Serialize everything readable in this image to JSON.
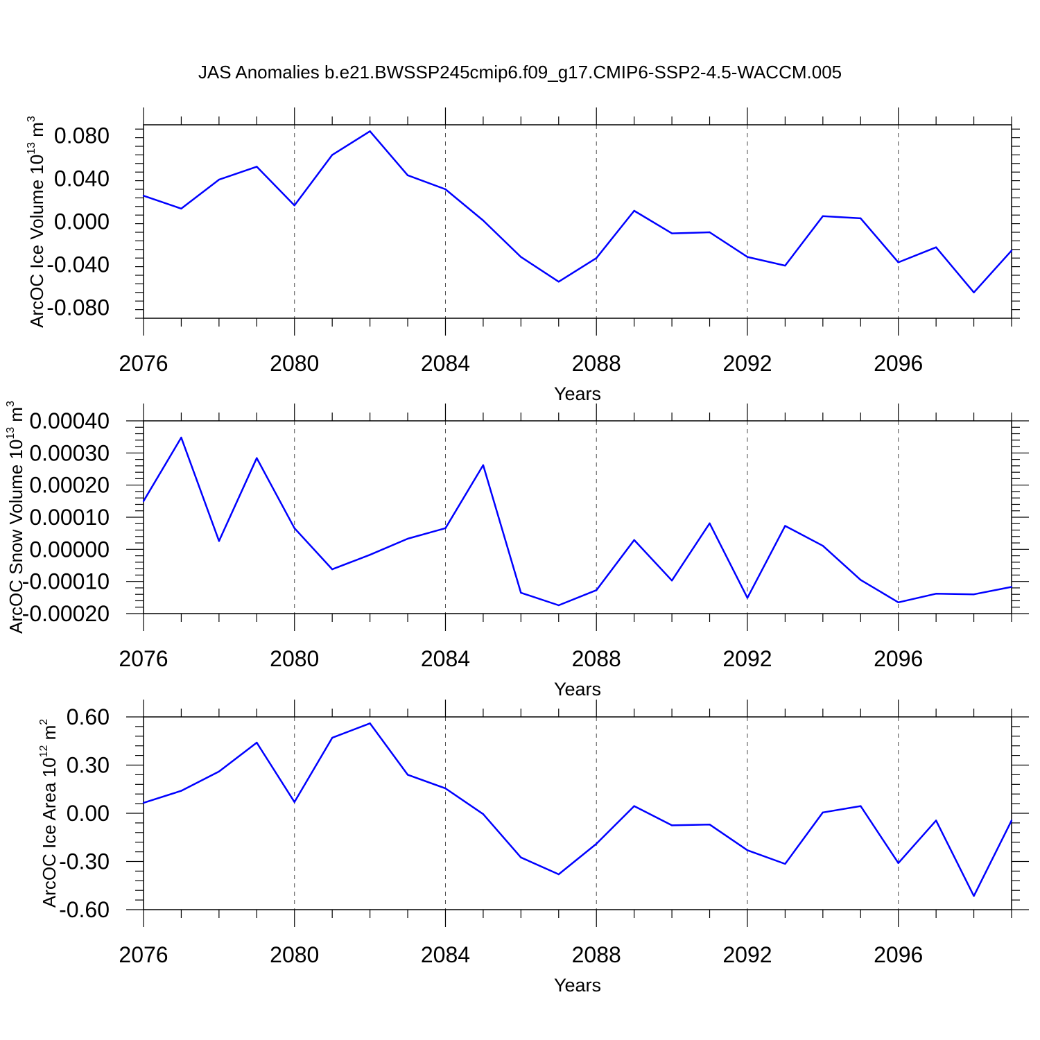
{
  "title": "JAS Anomalies b.e21.BWSSP245cmip6.f09_g17.CMIP6-SSP2-4.5-WACCM.005",
  "colors": {
    "line": "#0000ff",
    "axis": "#000000",
    "grid": "#000000",
    "background": "#ffffff"
  },
  "chart_data": [
    {
      "type": "line",
      "ylabel_text": "ArcOC Ice Volume 10",
      "ylabel_exp": "13",
      "ylabel_unit": " m",
      "ylabel_unit_exp": "3",
      "xlabel": "Years",
      "xlim": [
        2076,
        2099
      ],
      "ylim": [
        -0.09,
        0.09
      ],
      "xticks": [
        2076,
        2080,
        2084,
        2088,
        2092,
        2096
      ],
      "xtick_labels": [
        "2076",
        "2080",
        "2084",
        "2088",
        "2092",
        "2096"
      ],
      "yticks": [
        -0.08,
        -0.04,
        0.0,
        0.04,
        0.08
      ],
      "ytick_labels": [
        "-0.080",
        "-0.040",
        "0.000",
        "0.040",
        "0.080"
      ],
      "grid": "dashed vertical at major x ticks",
      "x": [
        2076,
        2077,
        2078,
        2079,
        2080,
        2081,
        2082,
        2083,
        2084,
        2085,
        2086,
        2087,
        2088,
        2089,
        2090,
        2091,
        2092,
        2093,
        2094,
        2095,
        2096,
        2097,
        2098,
        2099
      ],
      "y": [
        0.024,
        0.012,
        0.039,
        0.051,
        0.015,
        0.062,
        0.084,
        0.043,
        0.03,
        0.001,
        -0.033,
        -0.056,
        -0.034,
        0.01,
        -0.011,
        -0.01,
        -0.033,
        -0.041,
        0.005,
        0.003,
        -0.038,
        -0.024,
        -0.066,
        -0.027
      ]
    },
    {
      "type": "line",
      "ylabel_text": "ArcOC Snow Volume 10",
      "ylabel_exp": "13",
      "ylabel_unit": " m",
      "ylabel_unit_exp": "3",
      "xlabel": "Years",
      "xlim": [
        2076,
        2099
      ],
      "ylim": [
        -0.0002,
        0.0004
      ],
      "xticks": [
        2076,
        2080,
        2084,
        2088,
        2092,
        2096
      ],
      "xtick_labels": [
        "2076",
        "2080",
        "2084",
        "2088",
        "2092",
        "2096"
      ],
      "yticks": [
        -0.0002,
        -0.0001,
        0.0,
        0.0001,
        0.0002,
        0.0003,
        0.0004
      ],
      "ytick_labels": [
        "-0.00020",
        "-0.00010",
        "0.00000",
        "0.00010",
        "0.00020",
        "0.00030",
        "0.00040"
      ],
      "grid": "dashed vertical at major x ticks",
      "x": [
        2076,
        2077,
        2078,
        2079,
        2080,
        2081,
        2082,
        2083,
        2084,
        2085,
        2086,
        2087,
        2088,
        2089,
        2090,
        2091,
        2092,
        2093,
        2094,
        2095,
        2096,
        2097,
        2098,
        2099
      ],
      "y": [
        0.00015,
        0.000348,
        2.6e-05,
        0.000284,
        6.6e-05,
        -6.2e-05,
        -1.7e-05,
        3.3e-05,
        6.6e-05,
        0.000262,
        -0.000135,
        -0.000174,
        -0.000127,
        2.9e-05,
        -9.7e-05,
        8.1e-05,
        -0.000151,
        7.3e-05,
        1.1e-05,
        -9.5e-05,
        -0.000165,
        -0.000138,
        -0.00014,
        -0.000117
      ]
    },
    {
      "type": "line",
      "ylabel_text": "ArcOC Ice Area 10",
      "ylabel_exp": "12",
      "ylabel_unit": " m",
      "ylabel_unit_exp": "2",
      "xlabel": "Years",
      "xlim": [
        2076,
        2099
      ],
      "ylim": [
        -0.6,
        0.6
      ],
      "xticks": [
        2076,
        2080,
        2084,
        2088,
        2092,
        2096
      ],
      "xtick_labels": [
        "2076",
        "2080",
        "2084",
        "2088",
        "2092",
        "2096"
      ],
      "yticks": [
        -0.6,
        -0.3,
        0.0,
        0.3,
        0.6
      ],
      "ytick_labels": [
        "-0.60",
        "-0.30",
        "0.00",
        "0.30",
        "0.60"
      ],
      "grid": "dashed vertical at major x ticks",
      "x": [
        2076,
        2077,
        2078,
        2079,
        2080,
        2081,
        2082,
        2083,
        2084,
        2085,
        2086,
        2087,
        2088,
        2089,
        2090,
        2091,
        2092,
        2093,
        2094,
        2095,
        2096,
        2097,
        2098,
        2099
      ],
      "y": [
        0.065,
        0.14,
        0.26,
        0.44,
        0.07,
        0.47,
        0.56,
        0.24,
        0.155,
        -0.005,
        -0.275,
        -0.38,
        -0.19,
        0.045,
        -0.075,
        -0.07,
        -0.23,
        -0.315,
        0.005,
        0.045,
        -0.31,
        -0.045,
        -0.515,
        -0.045
      ]
    }
  ]
}
